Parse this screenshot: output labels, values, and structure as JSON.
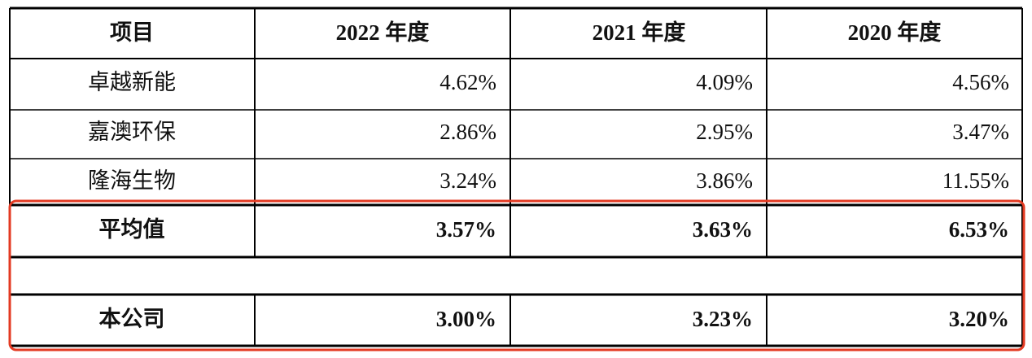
{
  "table": {
    "header": [
      "项目",
      "2022 年度",
      "2021 年度",
      "2020 年度"
    ],
    "rows": [
      [
        "卓越新能",
        "4.62%",
        "4.09%",
        "4.56%"
      ],
      [
        "嘉澳环保",
        "2.86%",
        "2.95%",
        "3.47%"
      ],
      [
        "隆海生物",
        "3.24%",
        "3.86%",
        "11.55%"
      ]
    ],
    "average": [
      "平均值",
      "3.57%",
      "3.63%",
      "6.53%"
    ],
    "company": [
      "本公司",
      "3.00%",
      "3.23%",
      "3.20%"
    ]
  }
}
